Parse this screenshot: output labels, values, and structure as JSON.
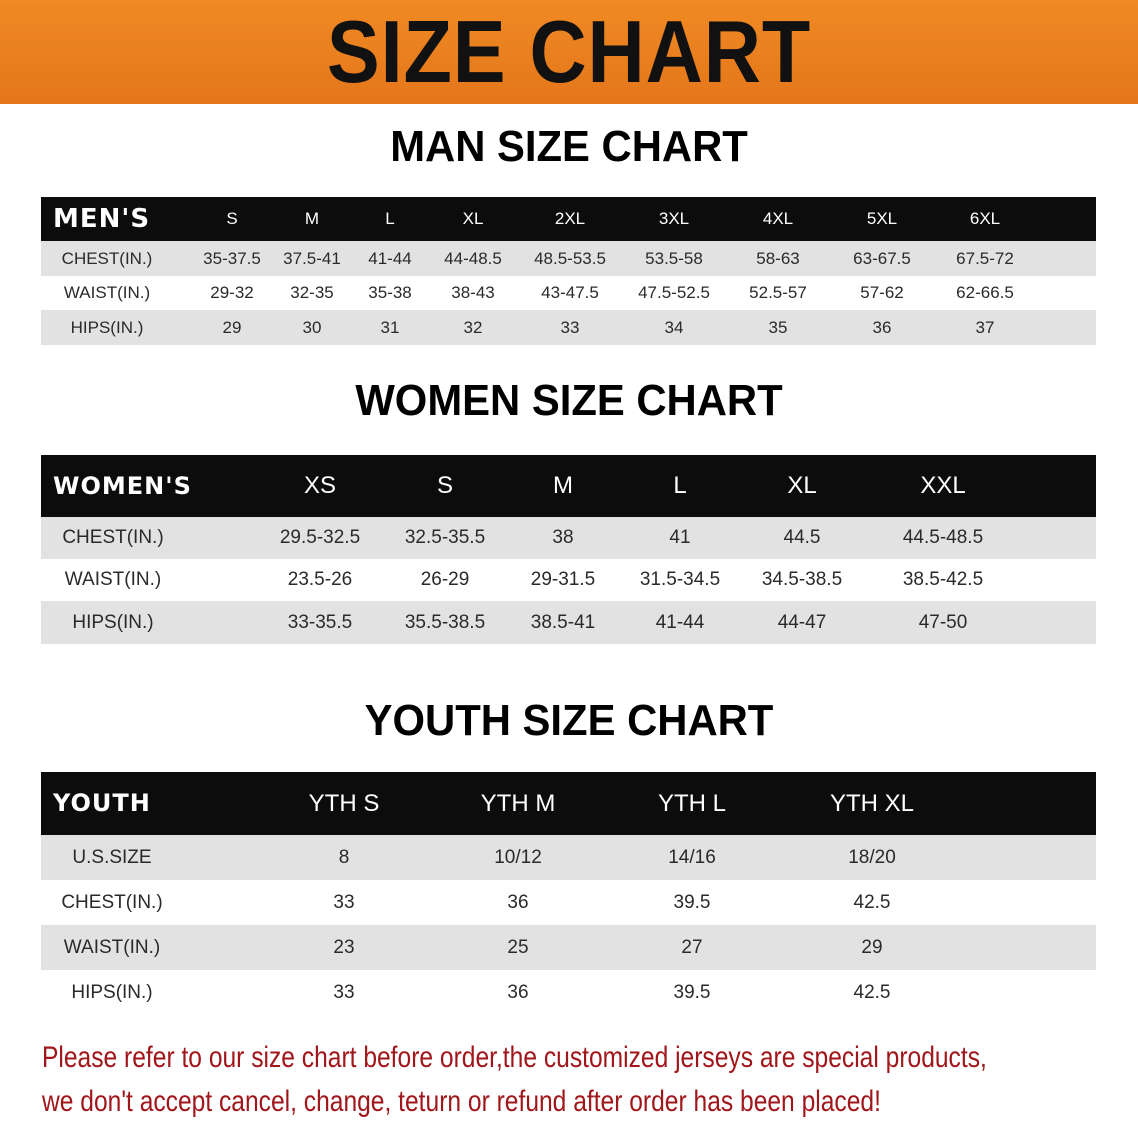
{
  "banner": {
    "title": "SIZE CHART",
    "color": "#e8791c"
  },
  "men": {
    "title": "MAN SIZE CHART",
    "header": [
      "MEN'S",
      "S",
      "M",
      "L",
      "XL",
      "2XL",
      "3XL",
      "4XL",
      "5XL",
      "6XL"
    ],
    "rows": [
      [
        "CHEST(IN.)",
        "35-37.5",
        "37.5-41",
        "41-44",
        "44-48.5",
        "48.5-53.5",
        "53.5-58",
        "58-63",
        "63-67.5",
        "67.5-72"
      ],
      [
        "WAIST(IN.)",
        "29-32",
        "32-35",
        "35-38",
        "38-43",
        "43-47.5",
        "47.5-52.5",
        "52.5-57",
        "57-62",
        "62-66.5"
      ],
      [
        "HIPS(IN.)",
        "29",
        "30",
        "31",
        "32",
        "33",
        "34",
        "35",
        "36",
        "37"
      ]
    ]
  },
  "women": {
    "title": "WOMEN SIZE CHART",
    "header": [
      "WOMEN'S",
      "XS",
      "S",
      "M",
      "L",
      "XL",
      "XXL"
    ],
    "rows": [
      [
        "CHEST(IN.)",
        "29.5-32.5",
        "32.5-35.5",
        "38",
        "41",
        "44.5",
        "44.5-48.5"
      ],
      [
        "WAIST(IN.)",
        "23.5-26",
        "26-29",
        "29-31.5",
        "31.5-34.5",
        "34.5-38.5",
        "38.5-42.5"
      ],
      [
        "HIPS(IN.)",
        "33-35.5",
        "35.5-38.5",
        "38.5-41",
        "41-44",
        "44-47",
        "47-50"
      ]
    ]
  },
  "youth": {
    "title": "YOUTH SIZE CHART",
    "header": [
      "YOUTH",
      "YTH S",
      "YTH M",
      "YTH L",
      "YTH XL"
    ],
    "rows": [
      [
        "U.S.SIZE",
        "8",
        "10/12",
        "14/16",
        "18/20"
      ],
      [
        "CHEST(IN.)",
        "33",
        "36",
        "39.5",
        "42.5"
      ],
      [
        "WAIST(IN.)",
        "23",
        "25",
        "27",
        "29"
      ],
      [
        "HIPS(IN.)",
        "33",
        "36",
        "39.5",
        "42.5"
      ]
    ]
  },
  "note": {
    "line1": "Please refer to our size chart before order,the customized jerseys are special products,",
    "line2": "we don't accept cancel, change, teturn or refund after order has been placed!",
    "color": "#a0161a"
  }
}
